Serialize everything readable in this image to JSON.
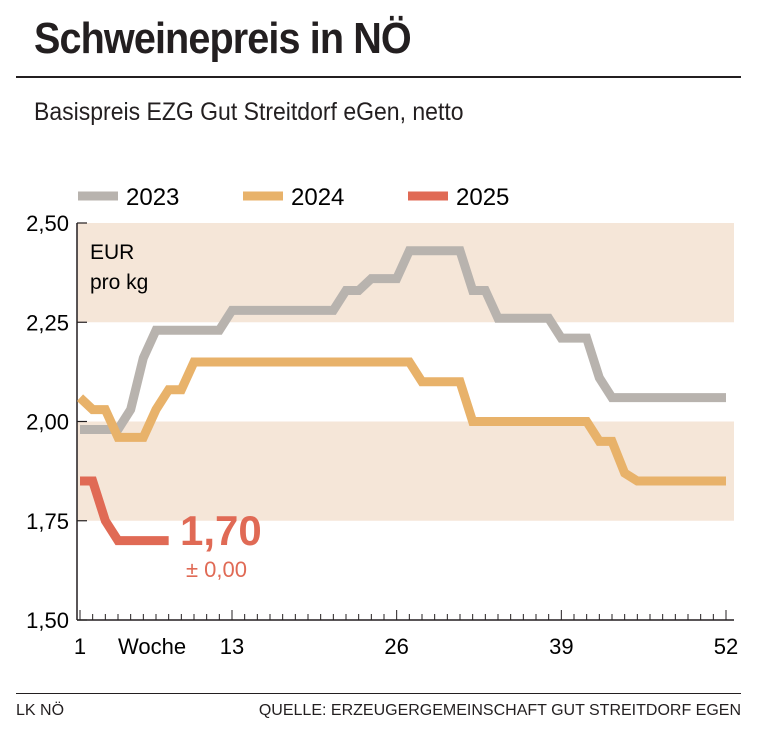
{
  "header": {
    "title": "Schweinepreis in NÖ",
    "subtitle": "Basispreis EZG Gut Streitdorf eGen, netto"
  },
  "footer": {
    "left": "LK NÖ",
    "right": "QUELLE: ERZEUGERGEMEINSCHAFT GUT STREITDORF EGEN"
  },
  "chart_data": {
    "type": "line",
    "unit_label": [
      "EUR",
      "pro kg"
    ],
    "xlabel": "Woche",
    "x_ticks": [
      1,
      13,
      26,
      39,
      52
    ],
    "xlim": [
      1,
      52
    ],
    "ylim": [
      1.5,
      2.5
    ],
    "y_ticks": [
      "1,50",
      "1,75",
      "2,00",
      "2,25",
      "2,50"
    ],
    "y_tick_values": [
      1.5,
      1.75,
      2.0,
      2.25,
      2.5
    ],
    "bands": [
      [
        1.75,
        2.0
      ],
      [
        2.25,
        2.5
      ]
    ],
    "legend_position": "top",
    "annotation": {
      "value": "1,70",
      "change": "± 0,00"
    },
    "series": [
      {
        "name": "2023",
        "color": "#b8b3ae",
        "values": [
          1.98,
          1.98,
          1.98,
          1.98,
          2.03,
          2.16,
          2.23,
          2.23,
          2.23,
          2.23,
          2.23,
          2.23,
          2.28,
          2.28,
          2.28,
          2.28,
          2.28,
          2.28,
          2.28,
          2.28,
          2.28,
          2.33,
          2.33,
          2.36,
          2.36,
          2.36,
          2.43,
          2.43,
          2.43,
          2.43,
          2.43,
          2.33,
          2.33,
          2.26,
          2.26,
          2.26,
          2.26,
          2.26,
          2.21,
          2.21,
          2.21,
          2.11,
          2.06,
          2.06,
          2.06,
          2.06,
          2.06,
          2.06,
          2.06,
          2.06,
          2.06,
          2.06
        ]
      },
      {
        "name": "2024",
        "color": "#e8b26a",
        "values": [
          2.06,
          2.03,
          2.03,
          1.96,
          1.96,
          1.96,
          2.03,
          2.08,
          2.08,
          2.15,
          2.15,
          2.15,
          2.15,
          2.15,
          2.15,
          2.15,
          2.15,
          2.15,
          2.15,
          2.15,
          2.15,
          2.15,
          2.15,
          2.15,
          2.15,
          2.15,
          2.15,
          2.1,
          2.1,
          2.1,
          2.1,
          2.0,
          2.0,
          2.0,
          2.0,
          2.0,
          2.0,
          2.0,
          2.0,
          2.0,
          2.0,
          1.95,
          1.95,
          1.87,
          1.85,
          1.85,
          1.85,
          1.85,
          1.85,
          1.85,
          1.85,
          1.85
        ]
      },
      {
        "name": "2025",
        "color": "#e06a55",
        "values": [
          1.85,
          1.85,
          1.75,
          1.7,
          1.7,
          1.7,
          1.7,
          1.7
        ]
      }
    ]
  }
}
